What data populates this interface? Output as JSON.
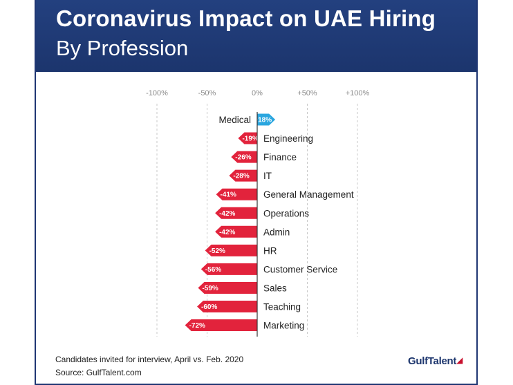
{
  "header": {
    "title": "Coronavirus Impact on UAE Hiring",
    "subtitle": "By Profession"
  },
  "colors": {
    "header_bg": "#1f3a78",
    "positive": "#2aa6df",
    "negative": "#e2233c",
    "grid": "#c8c8c8"
  },
  "chart_data": {
    "type": "bar",
    "orientation": "horizontal",
    "title": "Coronavirus Impact on UAE Hiring",
    "subtitle": "By Profession",
    "xlim": [
      -100,
      100
    ],
    "ticks": [
      {
        "value": -100,
        "label": "-100%"
      },
      {
        "value": -50,
        "label": "-50%"
      },
      {
        "value": 0,
        "label": "0%"
      },
      {
        "value": 50,
        "label": "+50%"
      },
      {
        "value": 100,
        "label": "+100%"
      }
    ],
    "categories": [
      "Medical",
      "Engineering",
      "Finance",
      "IT",
      "General Management",
      "Operations",
      "Admin",
      "HR",
      "Customer Service",
      "Sales",
      "Teaching",
      "Marketing"
    ],
    "values": [
      18,
      -19,
      -26,
      -28,
      -41,
      -42,
      -42,
      -52,
      -56,
      -59,
      -60,
      -72
    ],
    "value_labels": [
      "+18%",
      "-19%",
      "-26%",
      "-28%",
      "-41%",
      "-42%",
      "-42%",
      "-52%",
      "-56%",
      "-59%",
      "-60%",
      "-72%"
    ],
    "grid": true,
    "grid_style": "dashed vertical"
  },
  "footer": {
    "note": "Candidates invited for interview, April vs. Feb. 2020",
    "source": "Source: GulfTalent.com",
    "logo_text": "GulfTalent"
  }
}
